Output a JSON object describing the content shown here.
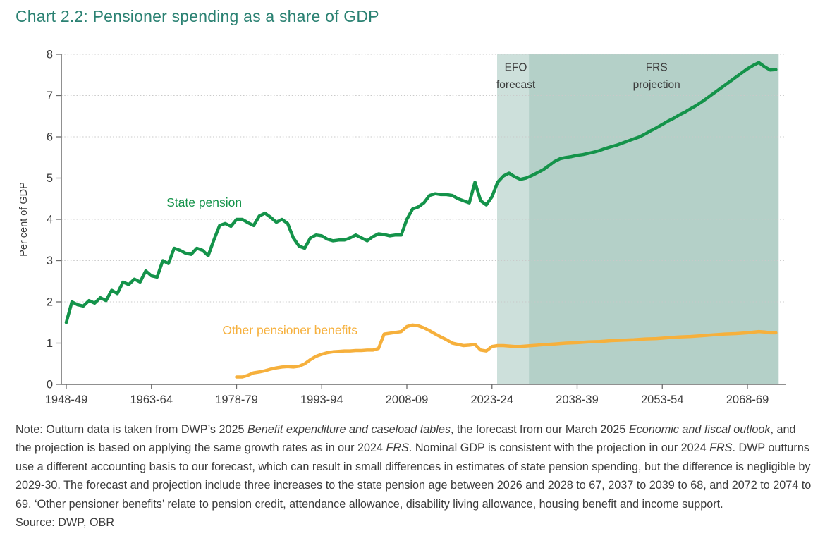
{
  "title": "Chart 2.2: Pensioner spending as a share of GDP",
  "source": "Source: DWP, OBR",
  "colors": {
    "title_teal": "#2a8172",
    "state_pension_green": "#14934a",
    "other_benefits_orange": "#f6b03c",
    "efo_region": "#cde0db",
    "frs_region": "#b4d0c8",
    "axis": "#6b6b6b",
    "gridline": "#c9c9c9",
    "text": "#3c3c3c"
  },
  "chart_data": {
    "type": "line",
    "title": "Chart 2.2: Pensioner spending as a share of GDP",
    "xlabel": "",
    "ylabel": "Per cent of GDP",
    "ylim": [
      0,
      8
    ],
    "yticks": [
      0,
      1,
      2,
      3,
      4,
      5,
      6,
      7,
      8
    ],
    "x_domain": [
      1948,
      2074
    ],
    "grid": "horizontal-dotted",
    "legend_position": "inline-labels",
    "xticks": [
      {
        "year": 1948,
        "label": "1948-49"
      },
      {
        "year": 1963,
        "label": "1963-64"
      },
      {
        "year": 1978,
        "label": "1978-79"
      },
      {
        "year": 1993,
        "label": "1993-94"
      },
      {
        "year": 2008,
        "label": "2008-09"
      },
      {
        "year": 2023,
        "label": "2023-24"
      },
      {
        "year": 2038,
        "label": "2038-39"
      },
      {
        "year": 2053,
        "label": "2053-54"
      },
      {
        "year": 2068,
        "label": "2068-69"
      }
    ],
    "regions": [
      {
        "id": "efo",
        "label_lines": [
          "EFO",
          "forecast"
        ],
        "start_year": 2023.9,
        "end_year": 2029.5,
        "color": "#cde0db",
        "label_center_year": 2027.2
      },
      {
        "id": "frs",
        "label_lines": [
          "FRS",
          "projection"
        ],
        "start_year": 2029.5,
        "end_year": 2073.5,
        "color": "#b4d0c8",
        "label_center_year": 2052
      }
    ],
    "region_label_values": [
      7.6,
      7.18
    ],
    "series": [
      {
        "id": "state-pension",
        "name": "State pension",
        "color": "#14934a",
        "label_anchor": {
          "year": 1972.3,
          "value": 4.31
        },
        "points": [
          [
            1948,
            1.5
          ],
          [
            1949,
            2.0
          ],
          [
            1950,
            1.93
          ],
          [
            1951,
            1.9
          ],
          [
            1952,
            2.03
          ],
          [
            1953,
            1.97
          ],
          [
            1954,
            2.1
          ],
          [
            1955,
            2.03
          ],
          [
            1956,
            2.28
          ],
          [
            1957,
            2.2
          ],
          [
            1958,
            2.48
          ],
          [
            1959,
            2.42
          ],
          [
            1960,
            2.55
          ],
          [
            1961,
            2.48
          ],
          [
            1962,
            2.75
          ],
          [
            1963,
            2.63
          ],
          [
            1964,
            2.6
          ],
          [
            1965,
            3.0
          ],
          [
            1966,
            2.93
          ],
          [
            1967,
            3.3
          ],
          [
            1968,
            3.25
          ],
          [
            1969,
            3.18
          ],
          [
            1970,
            3.15
          ],
          [
            1971,
            3.3
          ],
          [
            1972,
            3.25
          ],
          [
            1973,
            3.12
          ],
          [
            1974,
            3.5
          ],
          [
            1975,
            3.85
          ],
          [
            1976,
            3.9
          ],
          [
            1977,
            3.83
          ],
          [
            1978,
            4.0
          ],
          [
            1979,
            4.0
          ],
          [
            1980,
            3.92
          ],
          [
            1981,
            3.85
          ],
          [
            1982,
            4.08
          ],
          [
            1983,
            4.15
          ],
          [
            1984,
            4.05
          ],
          [
            1985,
            3.93
          ],
          [
            1986,
            4.0
          ],
          [
            1987,
            3.9
          ],
          [
            1988,
            3.55
          ],
          [
            1989,
            3.35
          ],
          [
            1990,
            3.3
          ],
          [
            1991,
            3.55
          ],
          [
            1992,
            3.62
          ],
          [
            1993,
            3.6
          ],
          [
            1994,
            3.52
          ],
          [
            1995,
            3.48
          ],
          [
            1996,
            3.5
          ],
          [
            1997,
            3.5
          ],
          [
            1998,
            3.55
          ],
          [
            1999,
            3.62
          ],
          [
            2000,
            3.55
          ],
          [
            2001,
            3.48
          ],
          [
            2002,
            3.58
          ],
          [
            2003,
            3.65
          ],
          [
            2004,
            3.63
          ],
          [
            2005,
            3.6
          ],
          [
            2006,
            3.62
          ],
          [
            2007,
            3.62
          ],
          [
            2008,
            4.0
          ],
          [
            2009,
            4.25
          ],
          [
            2010,
            4.3
          ],
          [
            2011,
            4.4
          ],
          [
            2012,
            4.58
          ],
          [
            2013,
            4.62
          ],
          [
            2014,
            4.6
          ],
          [
            2015,
            4.6
          ],
          [
            2016,
            4.58
          ],
          [
            2017,
            4.5
          ],
          [
            2018,
            4.45
          ],
          [
            2019,
            4.4
          ],
          [
            2020,
            4.9
          ],
          [
            2021,
            4.45
          ],
          [
            2022,
            4.35
          ],
          [
            2023,
            4.55
          ],
          [
            2024,
            4.9
          ],
          [
            2025,
            5.05
          ],
          [
            2026,
            5.12
          ],
          [
            2027,
            5.03
          ],
          [
            2028,
            4.97
          ],
          [
            2029,
            5.0
          ],
          [
            2030,
            5.06
          ],
          [
            2031,
            5.13
          ],
          [
            2032,
            5.2
          ],
          [
            2033,
            5.3
          ],
          [
            2034,
            5.4
          ],
          [
            2035,
            5.47
          ],
          [
            2036,
            5.5
          ],
          [
            2037,
            5.52
          ],
          [
            2038,
            5.55
          ],
          [
            2039,
            5.57
          ],
          [
            2040,
            5.6
          ],
          [
            2041,
            5.63
          ],
          [
            2042,
            5.67
          ],
          [
            2043,
            5.72
          ],
          [
            2044,
            5.76
          ],
          [
            2045,
            5.8
          ],
          [
            2046,
            5.85
          ],
          [
            2047,
            5.9
          ],
          [
            2048,
            5.95
          ],
          [
            2049,
            6.0
          ],
          [
            2050,
            6.07
          ],
          [
            2051,
            6.15
          ],
          [
            2052,
            6.22
          ],
          [
            2053,
            6.3
          ],
          [
            2054,
            6.38
          ],
          [
            2055,
            6.45
          ],
          [
            2056,
            6.53
          ],
          [
            2057,
            6.6
          ],
          [
            2058,
            6.68
          ],
          [
            2059,
            6.76
          ],
          [
            2060,
            6.85
          ],
          [
            2061,
            6.95
          ],
          [
            2062,
            7.05
          ],
          [
            2063,
            7.15
          ],
          [
            2064,
            7.25
          ],
          [
            2065,
            7.35
          ],
          [
            2066,
            7.45
          ],
          [
            2067,
            7.55
          ],
          [
            2068,
            7.65
          ],
          [
            2069,
            7.73
          ],
          [
            2070,
            7.8
          ],
          [
            2071,
            7.7
          ],
          [
            2072,
            7.62
          ],
          [
            2073,
            7.63
          ]
        ]
      },
      {
        "id": "other-pensioner-benefits",
        "name": "Other pensioner benefits",
        "color": "#f6b03c",
        "label_anchor": {
          "year": 1987.4,
          "value": 1.21
        },
        "points": [
          [
            1978,
            0.18
          ],
          [
            1979,
            0.18
          ],
          [
            1980,
            0.22
          ],
          [
            1981,
            0.28
          ],
          [
            1982,
            0.3
          ],
          [
            1983,
            0.33
          ],
          [
            1984,
            0.37
          ],
          [
            1985,
            0.4
          ],
          [
            1986,
            0.42
          ],
          [
            1987,
            0.43
          ],
          [
            1988,
            0.42
          ],
          [
            1989,
            0.44
          ],
          [
            1990,
            0.5
          ],
          [
            1991,
            0.6
          ],
          [
            1992,
            0.68
          ],
          [
            1993,
            0.73
          ],
          [
            1994,
            0.77
          ],
          [
            1995,
            0.79
          ],
          [
            1996,
            0.8
          ],
          [
            1997,
            0.81
          ],
          [
            1998,
            0.81
          ],
          [
            1999,
            0.82
          ],
          [
            2000,
            0.82
          ],
          [
            2001,
            0.83
          ],
          [
            2002,
            0.83
          ],
          [
            2003,
            0.87
          ],
          [
            2004,
            1.22
          ],
          [
            2005,
            1.24
          ],
          [
            2006,
            1.26
          ],
          [
            2007,
            1.28
          ],
          [
            2008,
            1.4
          ],
          [
            2009,
            1.44
          ],
          [
            2010,
            1.42
          ],
          [
            2011,
            1.37
          ],
          [
            2012,
            1.3
          ],
          [
            2013,
            1.22
          ],
          [
            2014,
            1.15
          ],
          [
            2015,
            1.08
          ],
          [
            2016,
            1.0
          ],
          [
            2017,
            0.97
          ],
          [
            2018,
            0.94
          ],
          [
            2019,
            0.95
          ],
          [
            2020,
            0.97
          ],
          [
            2021,
            0.83
          ],
          [
            2022,
            0.81
          ],
          [
            2023,
            0.92
          ],
          [
            2024,
            0.94
          ],
          [
            2025,
            0.94
          ],
          [
            2026,
            0.93
          ],
          [
            2027,
            0.92
          ],
          [
            2028,
            0.92
          ],
          [
            2029,
            0.93
          ],
          [
            2030,
            0.94
          ],
          [
            2032,
            0.96
          ],
          [
            2034,
            0.98
          ],
          [
            2036,
            1.0
          ],
          [
            2038,
            1.01
          ],
          [
            2040,
            1.03
          ],
          [
            2042,
            1.04
          ],
          [
            2044,
            1.06
          ],
          [
            2046,
            1.07
          ],
          [
            2048,
            1.08
          ],
          [
            2050,
            1.1
          ],
          [
            2052,
            1.11
          ],
          [
            2054,
            1.13
          ],
          [
            2056,
            1.15
          ],
          [
            2058,
            1.16
          ],
          [
            2060,
            1.18
          ],
          [
            2062,
            1.2
          ],
          [
            2064,
            1.22
          ],
          [
            2066,
            1.23
          ],
          [
            2068,
            1.25
          ],
          [
            2070,
            1.28
          ],
          [
            2071,
            1.27
          ],
          [
            2072,
            1.25
          ],
          [
            2073,
            1.25
          ]
        ]
      }
    ]
  },
  "note_segments": [
    {
      "text": "Note: Outturn data is taken from DWP’s 2025 ",
      "italic": false
    },
    {
      "text": "Benefit expenditure and caseload tables",
      "italic": true
    },
    {
      "text": ", the forecast from our March 2025 ",
      "italic": false
    },
    {
      "text": "Economic and fiscal outlook",
      "italic": true
    },
    {
      "text": ", and the projection is based on applying the same growth rates as in our 2024 ",
      "italic": false
    },
    {
      "text": "FRS",
      "italic": true
    },
    {
      "text": ". Nominal GDP is consistent with the projection in our 2024 ",
      "italic": false
    },
    {
      "text": "FRS",
      "italic": true
    },
    {
      "text": ". DWP outturns use a different accounting basis to our forecast, which can result in small differences in estimates of state pension spending, but the difference is negligible by 2029-30. The forecast and projection include three increases to the state pension age between 2026 and 2028 to 67, 2037 to 2039 to 68, and 2072 to 2074 to 69. ‘Other pensioner benefits’ relate to pension credit, attendance allowance, disability living allowance, housing benefit and income support.",
      "italic": false
    }
  ]
}
